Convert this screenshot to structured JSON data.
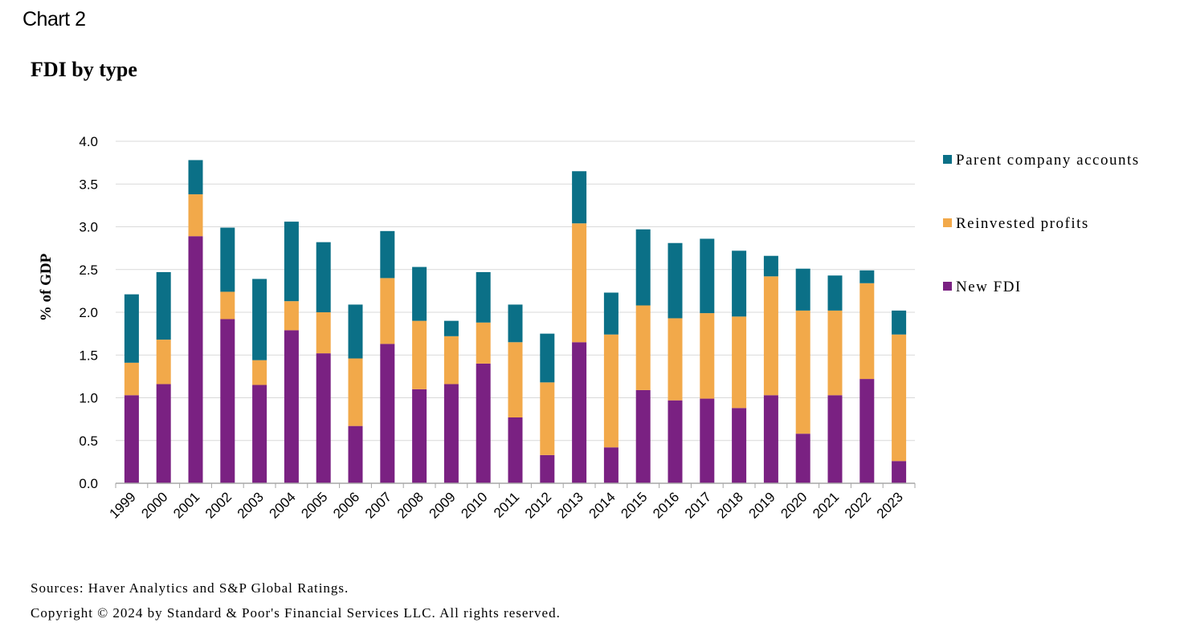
{
  "header": {
    "chart_label": "Chart 2",
    "title": "FDI by type"
  },
  "footer": {
    "sources": "Sources: Haver Analytics and S&P Global Ratings.",
    "copyright": "Copyright © 2024 by Standard & Poor's Financial Services LLC. All rights reserved."
  },
  "colors": {
    "new_fdi": "#7a2182",
    "reinvested_profits": "#f2a94a",
    "parent_company_accounts": "#0b7087",
    "grid": "#d9d9d9",
    "axis": "#a6a6a6"
  },
  "chart_data": {
    "type": "bar",
    "stacked": true,
    "title": "FDI by type",
    "ylabel": "% of GDP",
    "ylim": [
      0,
      4.0
    ],
    "yticks": [
      "0.0",
      "0.5",
      "1.0",
      "1.5",
      "2.0",
      "2.5",
      "3.0",
      "3.5",
      "4.0"
    ],
    "grid": true,
    "legend_position": "right",
    "categories": [
      "1999",
      "2000",
      "2001",
      "2002",
      "2003",
      "2004",
      "2005",
      "2006",
      "2007",
      "2008",
      "2009",
      "2010",
      "2011",
      "2012",
      "2013",
      "2014",
      "2015",
      "2016",
      "2017",
      "2018",
      "2019",
      "2020",
      "2021",
      "2022",
      "2023"
    ],
    "series": [
      {
        "name": "New FDI",
        "values": [
          1.03,
          1.16,
          2.89,
          1.92,
          1.15,
          1.79,
          1.52,
          0.67,
          1.63,
          1.1,
          1.16,
          1.4,
          0.77,
          0.33,
          1.65,
          0.42,
          1.09,
          0.97,
          0.99,
          0.88,
          1.03,
          0.58,
          1.03,
          1.22,
          0.26
        ]
      },
      {
        "name": "Reinvested profits",
        "values": [
          0.38,
          0.52,
          0.49,
          0.32,
          0.29,
          0.34,
          0.48,
          0.79,
          0.77,
          0.8,
          0.56,
          0.48,
          0.88,
          0.85,
          1.39,
          1.32,
          0.99,
          0.96,
          1.0,
          1.07,
          1.39,
          1.44,
          0.99,
          1.12,
          1.48
        ]
      },
      {
        "name": "Parent company accounts",
        "values": [
          0.8,
          0.79,
          0.4,
          0.75,
          0.95,
          0.93,
          0.82,
          0.63,
          0.55,
          0.63,
          0.18,
          0.59,
          0.44,
          0.57,
          0.61,
          0.49,
          0.89,
          0.88,
          0.87,
          0.77,
          0.24,
          0.49,
          0.41,
          0.15,
          0.28
        ]
      }
    ],
    "legend_order": [
      "Parent company accounts",
      "Reinvested profits",
      "New FDI"
    ]
  }
}
